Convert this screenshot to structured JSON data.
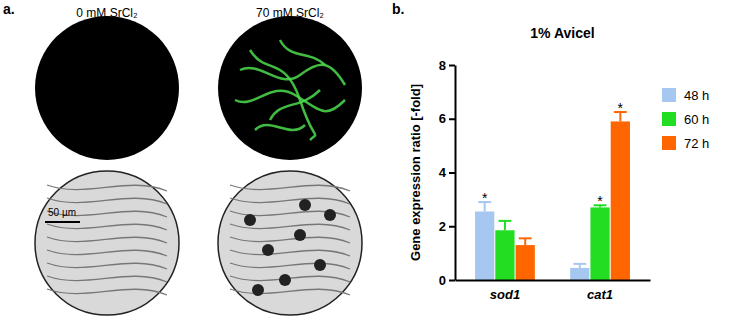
{
  "panel_labels": [
    "a.",
    "b."
  ],
  "panel_a": {
    "conditions": [
      "0 mM SrCl₂",
      "70 mM SrCl₂"
    ],
    "scale_bar": "50 µm"
  },
  "chart_data": {
    "type": "bar",
    "title": "1% Avicel",
    "y_label": "Gene expression ratio [-fold]",
    "categories": [
      "sod1",
      "cat1"
    ],
    "series": [
      {
        "name": "48 h",
        "color": "#a6c8f0",
        "values": [
          2.55,
          0.45
        ],
        "errors": [
          0.35,
          0.15
        ],
        "annotations": [
          "*",
          null
        ]
      },
      {
        "name": "60 h",
        "color": "#22dd22",
        "values": [
          1.85,
          2.7
        ],
        "errors": [
          0.35,
          0.08
        ],
        "annotations": [
          null,
          "*"
        ]
      },
      {
        "name": "72 h",
        "color": "#ff6600",
        "values": [
          1.3,
          5.9
        ],
        "errors": [
          0.25,
          0.35
        ],
        "annotations": [
          null,
          "*"
        ]
      }
    ],
    "ylim": [
      0,
      8
    ],
    "yticks": [
      0,
      2,
      4,
      6,
      8
    ],
    "grid": false,
    "legend": "right"
  }
}
